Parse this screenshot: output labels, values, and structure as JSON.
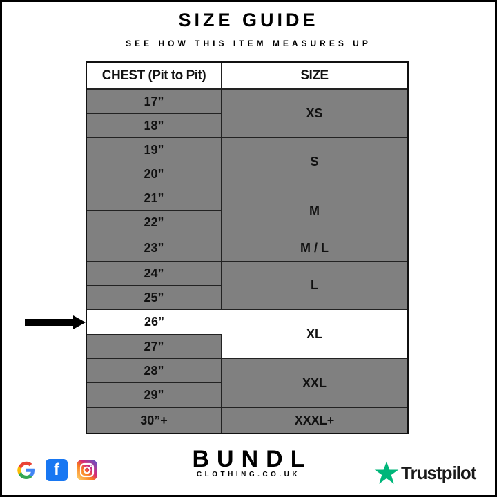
{
  "title": "SIZE GUIDE",
  "subtitle": "SEE HOW THIS ITEM MEASURES UP",
  "table": {
    "headers": [
      "CHEST (Pit to Pit)",
      "SIZE"
    ],
    "chest": [
      "17”",
      "18”",
      "19”",
      "20”",
      "21”",
      "22”",
      "23”",
      "24”",
      "25”",
      "26”",
      "27”",
      "28”",
      "29”",
      "30”+"
    ],
    "sizes": [
      "XS",
      "S",
      "M",
      "M / L",
      "L",
      "XL",
      "XXL",
      "XXXL+"
    ],
    "highlighted_chest": "26”",
    "highlighted_size": "XL"
  },
  "colors": {
    "cell": "#808080",
    "highlight": "#ffffff",
    "trustpilot": "#00b67a"
  },
  "footer": {
    "icons": [
      "google-icon",
      "facebook-icon",
      "instagram-icon"
    ],
    "brand": "BUNDL",
    "brand_sub": "CLOTHING.CO.UK",
    "trustpilot": "Trustpilot"
  }
}
